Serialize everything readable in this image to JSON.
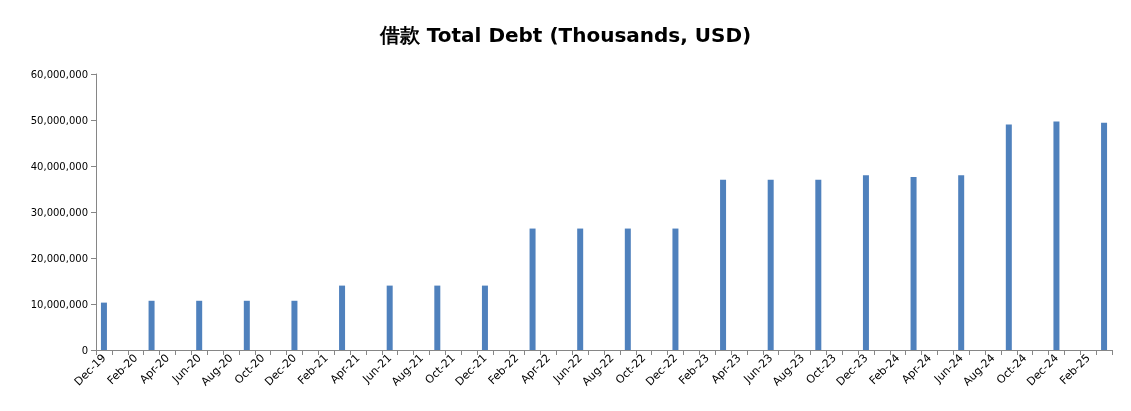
{
  "chart_data": {
    "type": "bar",
    "title": "借款 Total Debt (Thousands, USD)",
    "categories": [
      "Dec-19",
      null,
      "Feb-20",
      null,
      "Apr-20",
      null,
      "Jun-20",
      null,
      "Aug-20",
      null,
      "Oct-20",
      null,
      "Dec-20",
      null,
      "Feb-21",
      null,
      "Apr-21",
      null,
      "Jun-21",
      null,
      "Aug-21",
      null,
      "Oct-21",
      null,
      "Dec-21",
      null,
      "Feb-22",
      null,
      "Apr-22",
      null,
      "Jun-22",
      null,
      "Aug-22",
      null,
      "Oct-22",
      null,
      "Dec-22",
      null,
      "Feb-23",
      null,
      "Apr-23",
      null,
      "Jun-23",
      null,
      "Aug-23",
      null,
      "Oct-23",
      null,
      "Dec-23",
      null,
      "Feb-24",
      null,
      "Apr-24",
      null,
      "Jun-24",
      null,
      "Aug-24",
      null,
      "Oct-24",
      null,
      "Dec-24",
      null,
      "Feb-25",
      null
    ],
    "values": [
      10300000,
      null,
      null,
      10700000,
      null,
      null,
      10700000,
      null,
      null,
      10700000,
      null,
      null,
      10700000,
      null,
      null,
      14000000,
      null,
      null,
      14000000,
      null,
      null,
      14000000,
      null,
      null,
      14000000,
      null,
      null,
      26400000,
      null,
      null,
      26400000,
      null,
      null,
      26400000,
      null,
      null,
      26400000,
      null,
      null,
      37000000,
      null,
      null,
      37000000,
      null,
      null,
      37000000,
      null,
      null,
      38000000,
      null,
      null,
      37600000,
      null,
      null,
      38000000,
      null,
      null,
      49000000,
      null,
      null,
      49700000,
      null,
      null,
      49400000
    ],
    "color": "#4f81bd",
    "ylim": [
      0,
      60000000
    ],
    "yticks": [
      0,
      {
        "value": 10000000,
        "label": "10,000,000"
      },
      {
        "value": 20000000,
        "label": "20,000,000"
      },
      {
        "value": 30000000,
        "label": "30,000,000"
      },
      {
        "value": 40000000,
        "label": "40,000,000"
      },
      {
        "value": 50000000,
        "label": "50,000,000"
      },
      {
        "value": 60000000,
        "label": "60,000,000"
      }
    ]
  }
}
